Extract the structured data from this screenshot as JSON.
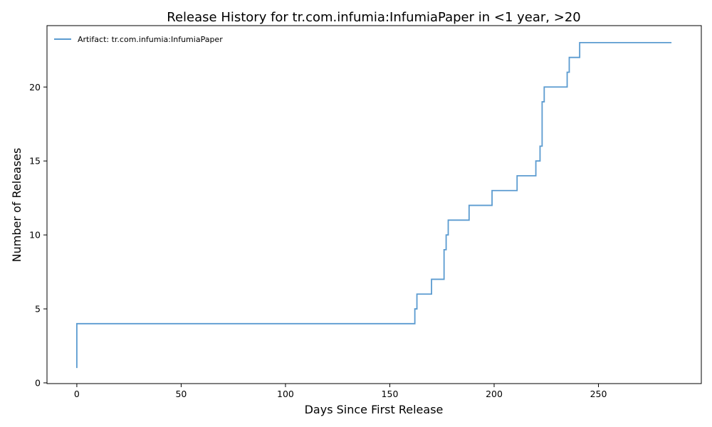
{
  "chart_data": {
    "type": "line",
    "step": "post",
    "title": "Release History for tr.com.infumia:InfumiaPaper in <1 year, >20",
    "xlabel": "Days Since First Release",
    "ylabel": "Number of Releases",
    "xlim": [
      -14.3,
      299.3
    ],
    "ylim": [
      -0.05,
      24.15
    ],
    "xticks": [
      0,
      50,
      100,
      150,
      200,
      250
    ],
    "yticks": [
      0,
      5,
      10,
      15,
      20
    ],
    "grid": false,
    "legend": "top-left",
    "series": [
      {
        "name": "Artifact: tr.com.infumia:InfumiaPaper",
        "color": "#5b9bd0",
        "x": [
          0,
          0,
          162,
          163,
          170,
          176,
          177,
          178,
          188,
          199,
          211,
          220,
          222,
          223,
          224,
          235,
          236,
          241,
          285
        ],
        "y": [
          1,
          4,
          5,
          6,
          7,
          9,
          10,
          11,
          12,
          13,
          14,
          15,
          16,
          19,
          20,
          21,
          22,
          23,
          23
        ]
      }
    ]
  }
}
